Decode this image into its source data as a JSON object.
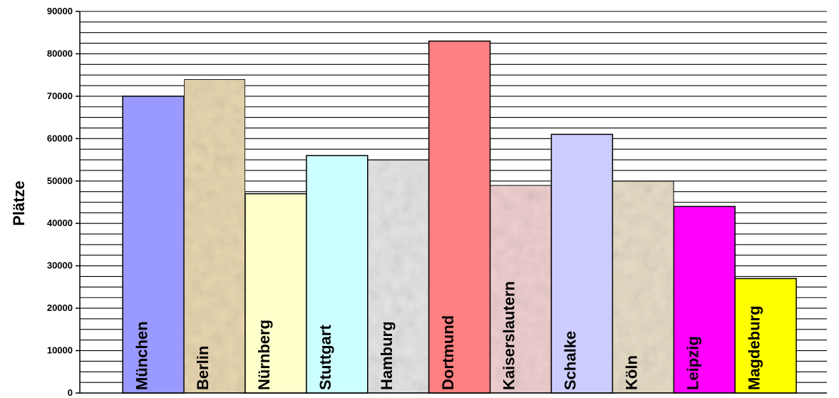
{
  "chart_data": {
    "type": "bar",
    "title": "",
    "ylabel": "Plätze",
    "xlabel": "",
    "ylim": [
      0,
      90000
    ],
    "yticks": [
      0,
      10000,
      20000,
      30000,
      40000,
      50000,
      60000,
      70000,
      80000,
      90000
    ],
    "minor_grid_step": 2500,
    "grid": true,
    "legend": "none",
    "categories": [
      "München",
      "Berlin",
      "Nürnberg",
      "Stuttgart",
      "Hamburg",
      "Dortmund",
      "Kaiserslautern",
      "Schalke",
      "Köln",
      "Leipzig",
      "Magdeburg"
    ],
    "values": [
      70000,
      74000,
      47000,
      56000,
      55000,
      83000,
      49000,
      61000,
      50000,
      44000,
      27000
    ],
    "colors": [
      "#9999ff",
      "#e8d6b0",
      "#ffffcc",
      "#ccffff",
      "#e4e4e4",
      "#ff8080",
      "#efd0d0",
      "#ccccff",
      "#e6dcc6",
      "#ff00ff",
      "#ffff00"
    ]
  }
}
